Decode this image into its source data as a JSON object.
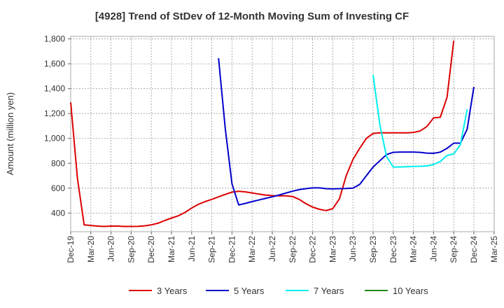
{
  "chart_data": {
    "type": "line",
    "title": "[4928]  Trend of StDev of 12-Month Moving Sum of Investing CF",
    "xlabel": "",
    "ylabel": "Amount (million yen)",
    "ylim": [
      250,
      1820
    ],
    "yticks": [
      400,
      600,
      800,
      1000,
      1200,
      1400,
      1600,
      1800
    ],
    "ytick_labels": [
      "400",
      "600",
      "800",
      "1,000",
      "1,200",
      "1,400",
      "1,600",
      "1,800"
    ],
    "x_labels": [
      "Dec-19",
      "Mar-20",
      "Jun-20",
      "Sep-20",
      "Dec-20",
      "Mar-21",
      "Jun-21",
      "Sep-21",
      "Dec-21",
      "Mar-22",
      "Jun-22",
      "Sep-22",
      "Dec-22",
      "Mar-23",
      "Jun-23",
      "Sep-23",
      "Dec-23",
      "Mar-24",
      "Jun-24",
      "Sep-24",
      "Dec-24",
      "Mar-25"
    ],
    "grid": true,
    "legend_position": "bottom",
    "series": [
      {
        "name": "3 Years",
        "color": "#dd0000",
        "start_index": 0,
        "values": [
          1290,
          680,
          305,
          300,
          295,
          292,
          295,
          295,
          292,
          292,
          293,
          297,
          305,
          318,
          340,
          360,
          378,
          405,
          440,
          470,
          492,
          510,
          530,
          550,
          568,
          575,
          570,
          562,
          552,
          545,
          540,
          538,
          538,
          533,
          510,
          475,
          448,
          430,
          420,
          435,
          515,
          700,
          830,
          920,
          1000,
          1040,
          1045,
          1045,
          1045,
          1045,
          1045,
          1048,
          1060,
          1095,
          1165,
          1170,
          1330,
          1785
        ]
      },
      {
        "name": "5 Years",
        "color": "#0000cc",
        "start_index": 22,
        "values": [
          1645,
          1080,
          635,
          465,
          478,
          492,
          505,
          518,
          530,
          545,
          560,
          575,
          588,
          596,
          602,
          602,
          596,
          594,
          596,
          597,
          600,
          630,
          700,
          770,
          820,
          870,
          888,
          890,
          890,
          890,
          888,
          882,
          880,
          890,
          920,
          962,
          962,
          1075,
          1415
        ]
      },
      {
        "name": "7 Years",
        "color": "#00eeee",
        "start_index": 45,
        "values": [
          1510,
          1110,
          855,
          770,
          770,
          773,
          775,
          776,
          779,
          790,
          815,
          862,
          875,
          950,
          1235
        ]
      },
      {
        "name": "10 Years",
        "color": "#228822",
        "start_index": 0,
        "values": []
      }
    ]
  }
}
